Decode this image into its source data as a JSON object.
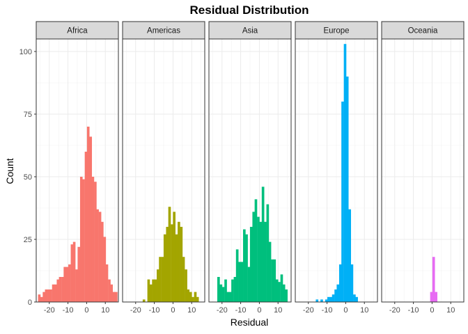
{
  "chart_data": {
    "type": "bar",
    "title": "Residual Distribution",
    "xlabel": "Residual",
    "ylabel": "Count",
    "xlim": [
      -27,
      17
    ],
    "ylim": [
      0,
      105
    ],
    "x_ticks": [
      -20,
      -10,
      0,
      10
    ],
    "x_tick_labels": [
      "-20",
      "-10",
      "0",
      "10"
    ],
    "y_ticks": [
      0,
      25,
      50,
      75,
      100
    ],
    "y_tick_labels": [
      "0",
      "25",
      "50",
      "75",
      "100"
    ],
    "bin_width": 1.25,
    "grid": true,
    "legend": "none",
    "panels": [
      {
        "name": "Africa",
        "color": "#F8766D",
        "bins": [
          {
            "x": -25.4,
            "count": 3
          },
          {
            "x": -24.2,
            "count": 2
          },
          {
            "x": -22.9,
            "count": 4
          },
          {
            "x": -21.7,
            "count": 5
          },
          {
            "x": -20.4,
            "count": 5
          },
          {
            "x": -19.2,
            "count": 5
          },
          {
            "x": -17.9,
            "count": 7
          },
          {
            "x": -16.7,
            "count": 7
          },
          {
            "x": -15.4,
            "count": 9
          },
          {
            "x": -14.2,
            "count": 10
          },
          {
            "x": -12.9,
            "count": 10
          },
          {
            "x": -11.7,
            "count": 14
          },
          {
            "x": -10.4,
            "count": 14
          },
          {
            "x": -9.2,
            "count": 15
          },
          {
            "x": -7.9,
            "count": 23
          },
          {
            "x": -6.7,
            "count": 24
          },
          {
            "x": -5.4,
            "count": 13
          },
          {
            "x": -4.2,
            "count": 22
          },
          {
            "x": -2.9,
            "count": 50
          },
          {
            "x": -1.7,
            "count": 49
          },
          {
            "x": -0.4,
            "count": 60
          },
          {
            "x": 0.8,
            "count": 70
          },
          {
            "x": 2.1,
            "count": 66
          },
          {
            "x": 3.3,
            "count": 50
          },
          {
            "x": 4.6,
            "count": 48
          },
          {
            "x": 5.8,
            "count": 37
          },
          {
            "x": 7.1,
            "count": 36
          },
          {
            "x": 8.3,
            "count": 32
          },
          {
            "x": 9.6,
            "count": 26
          },
          {
            "x": 10.8,
            "count": 15
          },
          {
            "x": 12.1,
            "count": 9
          },
          {
            "x": 13.3,
            "count": 7
          },
          {
            "x": 14.6,
            "count": 4
          },
          {
            "x": 15.8,
            "count": 4
          }
        ]
      },
      {
        "name": "Americas",
        "color": "#A3A500",
        "bins": [
          {
            "x": -15.6,
            "count": 1
          },
          {
            "x": -13.1,
            "count": 9
          },
          {
            "x": -11.9,
            "count": 7
          },
          {
            "x": -10.6,
            "count": 9
          },
          {
            "x": -9.4,
            "count": 9
          },
          {
            "x": -8.1,
            "count": 13
          },
          {
            "x": -6.9,
            "count": 18
          },
          {
            "x": -5.6,
            "count": 18
          },
          {
            "x": -4.4,
            "count": 27
          },
          {
            "x": -3.1,
            "count": 30
          },
          {
            "x": -1.9,
            "count": 38
          },
          {
            "x": -0.6,
            "count": 31
          },
          {
            "x": 0.6,
            "count": 36
          },
          {
            "x": 1.9,
            "count": 27
          },
          {
            "x": 3.1,
            "count": 32
          },
          {
            "x": 4.4,
            "count": 30
          },
          {
            "x": 5.6,
            "count": 18
          },
          {
            "x": 6.9,
            "count": 13
          },
          {
            "x": 8.1,
            "count": 5
          },
          {
            "x": 9.4,
            "count": 4
          },
          {
            "x": 10.6,
            "count": 2
          },
          {
            "x": 11.9,
            "count": 4
          },
          {
            "x": 13.1,
            "count": 2
          }
        ]
      },
      {
        "name": "Asia",
        "color": "#00BF7D",
        "bins": [
          {
            "x": -21.9,
            "count": 10
          },
          {
            "x": -20.6,
            "count": 7
          },
          {
            "x": -19.4,
            "count": 6
          },
          {
            "x": -18.1,
            "count": 9
          },
          {
            "x": -16.9,
            "count": 4
          },
          {
            "x": -15.6,
            "count": 4
          },
          {
            "x": -14.4,
            "count": 9
          },
          {
            "x": -13.1,
            "count": 10
          },
          {
            "x": -11.9,
            "count": 21
          },
          {
            "x": -10.6,
            "count": 16
          },
          {
            "x": -9.4,
            "count": 16
          },
          {
            "x": -8.1,
            "count": 29
          },
          {
            "x": -6.9,
            "count": 27
          },
          {
            "x": -5.6,
            "count": 14
          },
          {
            "x": -4.4,
            "count": 30
          },
          {
            "x": -3.1,
            "count": 36
          },
          {
            "x": -1.9,
            "count": 41
          },
          {
            "x": -0.6,
            "count": 34
          },
          {
            "x": 0.6,
            "count": 32
          },
          {
            "x": 1.9,
            "count": 46
          },
          {
            "x": 3.1,
            "count": 32
          },
          {
            "x": 4.4,
            "count": 39
          },
          {
            "x": 5.6,
            "count": 24
          },
          {
            "x": 6.9,
            "count": 17
          },
          {
            "x": 8.1,
            "count": 17
          },
          {
            "x": 9.4,
            "count": 9
          },
          {
            "x": 10.6,
            "count": 8
          },
          {
            "x": 11.9,
            "count": 11
          },
          {
            "x": 13.1,
            "count": 7
          },
          {
            "x": 14.4,
            "count": 5
          }
        ]
      },
      {
        "name": "Europe",
        "color": "#00B0F6",
        "bins": [
          {
            "x": -15.4,
            "count": 1
          },
          {
            "x": -12.9,
            "count": 1
          },
          {
            "x": -10.4,
            "count": 1
          },
          {
            "x": -9.2,
            "count": 2
          },
          {
            "x": -7.9,
            "count": 2
          },
          {
            "x": -6.7,
            "count": 3
          },
          {
            "x": -5.4,
            "count": 5
          },
          {
            "x": -4.2,
            "count": 7
          },
          {
            "x": -2.9,
            "count": 15
          },
          {
            "x": -1.7,
            "count": 80
          },
          {
            "x": -0.4,
            "count": 103
          },
          {
            "x": 0.8,
            "count": 90
          },
          {
            "x": 2.1,
            "count": 37
          },
          {
            "x": 3.3,
            "count": 15
          },
          {
            "x": 4.6,
            "count": 3
          },
          {
            "x": 5.8,
            "count": 2
          }
        ]
      },
      {
        "name": "Oceania",
        "color": "#E76BF3",
        "bins": [
          {
            "x": -0.4,
            "count": 4
          },
          {
            "x": 0.8,
            "count": 18
          },
          {
            "x": 2.1,
            "count": 4
          }
        ]
      }
    ]
  }
}
